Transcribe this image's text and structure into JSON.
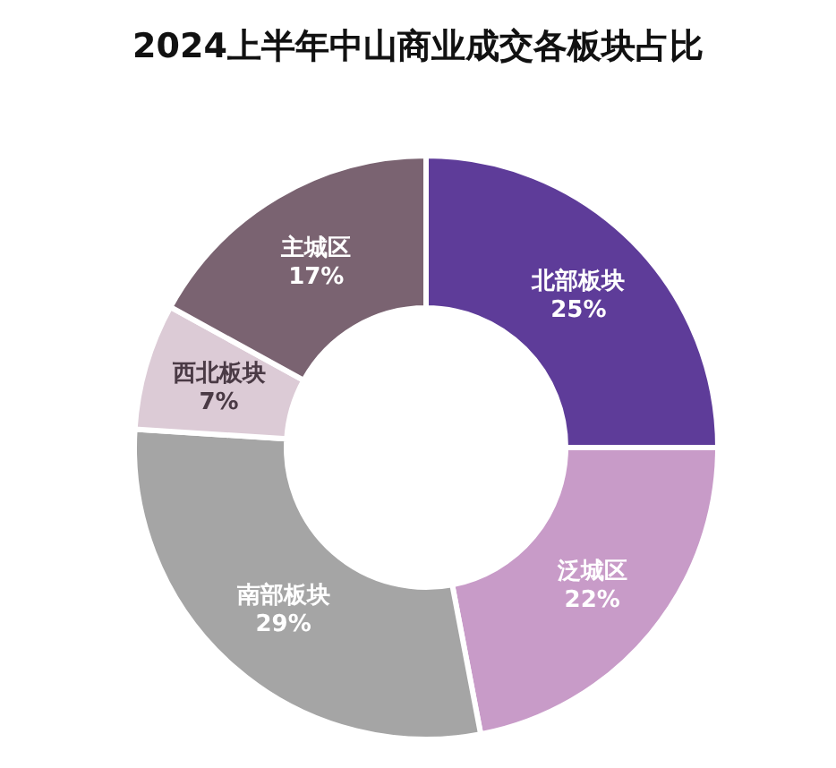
{
  "chart_data": {
    "type": "donut",
    "title": "2024上半年中山商业成交各板块占比",
    "categories": [
      "北部板块",
      "泛城区",
      "南部板块",
      "西北板块",
      "主城区"
    ],
    "values": [
      25,
      22,
      29,
      7,
      17
    ],
    "value_labels": [
      "25%",
      "22%",
      "29%",
      "7%",
      "17%"
    ],
    "colors": [
      "#5e3c99",
      "#c89bc8",
      "#a5a5a5",
      "#dccbd6",
      "#7a6371"
    ],
    "legend": false
  }
}
